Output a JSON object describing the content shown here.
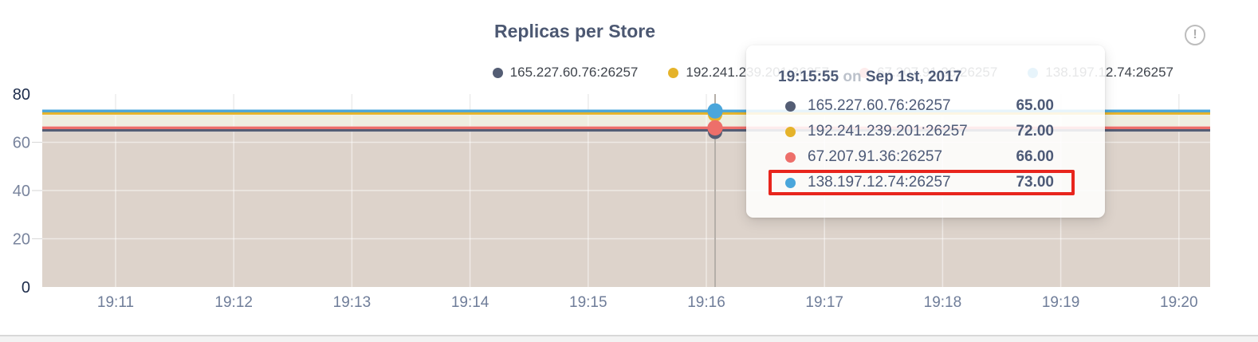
{
  "title": "Replicas per Store",
  "info_icon_glyph": "!",
  "colors": {
    "title_text": "#4c5872",
    "axis_label_dark": "#1c2b4a",
    "axis_label_light": "#79849d",
    "x_label": "#6f7d99",
    "grid_over_white": "#ececec",
    "grid_over_fill": "rgba(255,255,255,0.5)",
    "hover_guide": "#b5afa9",
    "band_cream": "#efeee0",
    "band_tan": "#ddd3cb",
    "highlight_box": "#e8251d",
    "tooltip_text": "#4d5a77",
    "legend_text": "#3f444c"
  },
  "legend": {
    "items": [
      {
        "label": "165.227.60.76:26257",
        "color": "#545d74"
      },
      {
        "label": "192.241.239.201:26257",
        "color": "#e5b32a"
      },
      {
        "label": "67.207.91.36:26257",
        "color": "#ed6f6a"
      },
      {
        "label": "138.197.12.74:26257",
        "color": "#4aa6db"
      }
    ]
  },
  "tooltip": {
    "time": "19:15:55",
    "connector": "on",
    "date": "Sep 1st, 2017",
    "rows": [
      {
        "label": "165.227.60.76:26257",
        "value": "65.00",
        "color": "#545d74",
        "highlighted": false
      },
      {
        "label": "192.241.239.201:26257",
        "value": "72.00",
        "color": "#e5b32a",
        "highlighted": false
      },
      {
        "label": "67.207.91.36:26257",
        "value": "66.00",
        "color": "#ed6f6a",
        "highlighted": false
      },
      {
        "label": "138.197.12.74:26257",
        "value": "73.00",
        "color": "#4aa6db",
        "highlighted": true
      }
    ]
  },
  "chart_data": {
    "type": "line",
    "title": "Replicas per Store",
    "x_ticks": [
      "19:11",
      "19:12",
      "19:13",
      "19:14",
      "19:15",
      "19:16",
      "19:17",
      "19:18",
      "19:19",
      "19:20"
    ],
    "y_ticks": [
      0,
      20,
      40,
      60,
      80
    ],
    "ylim": [
      0,
      80
    ],
    "grid": true,
    "area_fill": true,
    "legend_position": "top-right",
    "series": [
      {
        "name": "165.227.60.76:26257",
        "color": "#545d74",
        "value": 65
      },
      {
        "name": "192.241.239.201:26257",
        "color": "#e5b32a",
        "value": 72
      },
      {
        "name": "67.207.91.36:26257",
        "color": "#ed6f6a",
        "value": 66
      },
      {
        "name": "138.197.12.74:26257",
        "color": "#4aa6db",
        "value": 73
      }
    ],
    "hover": {
      "time": "19:15:55",
      "date": "Sep 1st, 2017",
      "values": [
        65,
        72,
        66,
        73
      ],
      "highlighted_series": "138.197.12.74:26257"
    }
  }
}
